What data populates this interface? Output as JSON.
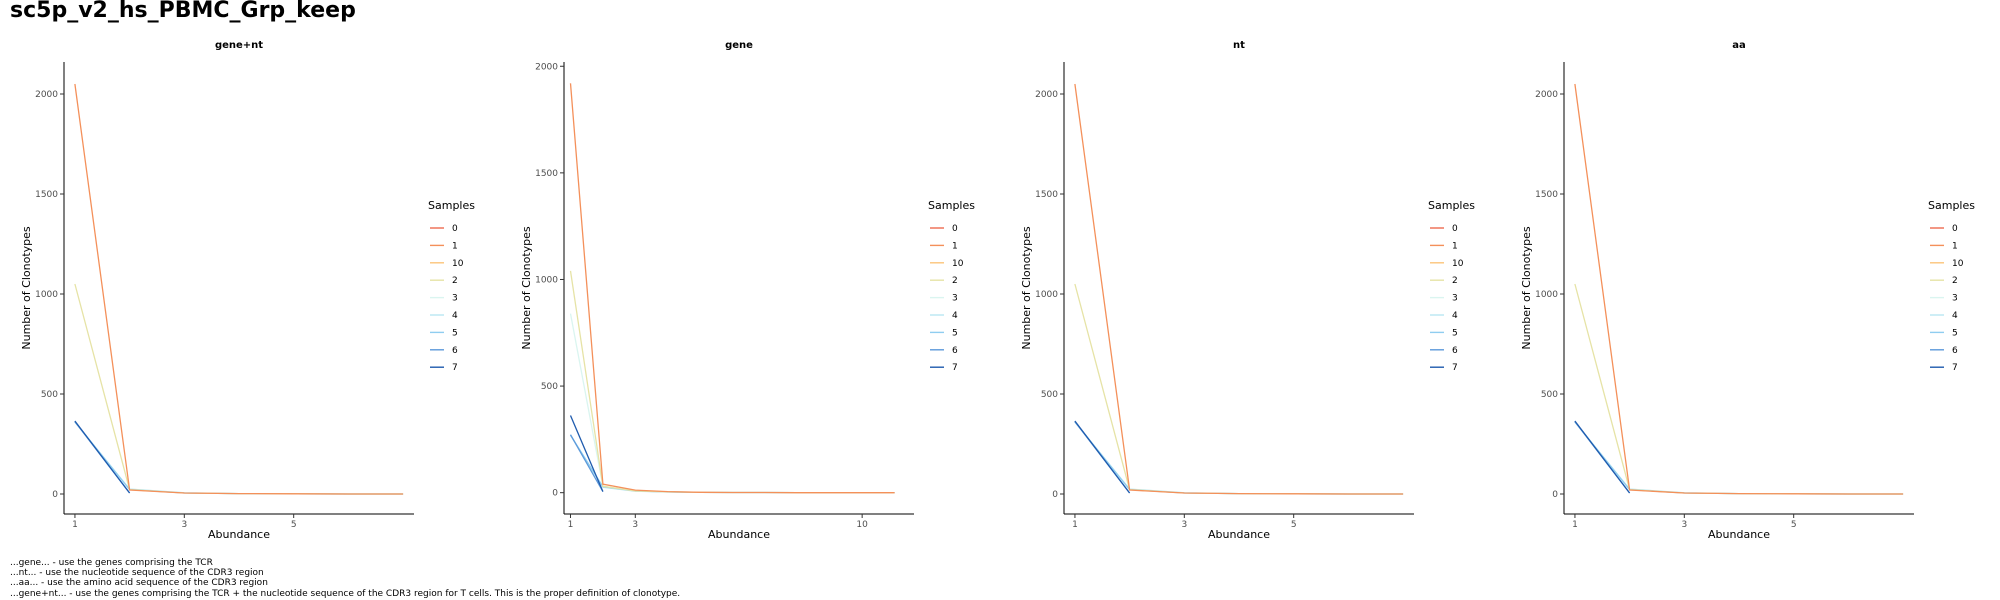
{
  "title": "sc5p_v2_hs_PBMC_Grp_keep",
  "captions": [
    "...gene... - use the genes comprising the TCR",
    "...nt... - use the nucleotide sequence of the CDR3 region",
    "...aa... - use the amino acid sequence of the CDR3 region",
    "...gene+nt... - use the genes comprising the TCR + the nucleotide sequence of the CDR3 region for T cells. This is the proper definition of clonotype."
  ],
  "series_colors": {
    "0": "#EE6A50",
    "1": "#F4905A",
    "10": "#FBC57A",
    "2": "#E6E3A6",
    "3": "#DAF5F0",
    "4": "#B8E6F2",
    "5": "#8FCDF0",
    "6": "#5D99DA",
    "7": "#1F5BAE"
  },
  "chart_data": [
    {
      "type": "line",
      "title": "gene+nt",
      "xlabel": "Abundance",
      "ylabel": "Number of Clonotypes",
      "xlim": [
        0.8,
        7.2
      ],
      "ylim": [
        -100,
        2160
      ],
      "xticks": [
        1,
        3,
        5
      ],
      "yticks": [
        0,
        500,
        1000,
        1500,
        2000
      ],
      "legend_title": "Samples",
      "legend": [
        "0",
        "1",
        "10",
        "2",
        "3",
        "4",
        "5",
        "6",
        "7"
      ],
      "series": [
        {
          "name": "3",
          "x": [
            1,
            2,
            3,
            4,
            5,
            6,
            7
          ],
          "y": [
            360,
            25,
            6,
            2,
            1,
            0,
            0
          ]
        },
        {
          "name": "4",
          "x": [
            1,
            2,
            3,
            4,
            5,
            6,
            7
          ],
          "y": [
            360,
            24,
            6,
            2,
            1,
            0,
            0
          ]
        },
        {
          "name": "5",
          "x": [
            1,
            2,
            3,
            4,
            5,
            6,
            7
          ],
          "y": [
            360,
            22,
            5,
            2,
            1,
            0,
            0
          ]
        },
        {
          "name": "2",
          "x": [
            1,
            2,
            3,
            4,
            5,
            6,
            7
          ],
          "y": [
            1050,
            22,
            5,
            2,
            1,
            0,
            0
          ]
        },
        {
          "name": "1",
          "x": [
            1,
            2,
            3,
            4,
            5,
            6,
            7
          ],
          "y": [
            2050,
            20,
            5,
            2,
            1,
            0,
            0
          ]
        },
        {
          "name": "6",
          "x": [
            1,
            2
          ],
          "y": [
            362,
            5
          ]
        },
        {
          "name": "7",
          "x": [
            1,
            2
          ],
          "y": [
            365,
            5
          ]
        }
      ]
    },
    {
      "type": "line",
      "title": "gene",
      "xlabel": "Abundance",
      "ylabel": "Number of Clonotypes",
      "xlim": [
        0.8,
        11.6
      ],
      "ylim": [
        -100,
        2020
      ],
      "xticks": [
        1,
        3,
        10
      ],
      "yticks": [
        0,
        500,
        1000,
        1500,
        2000
      ],
      "legend_title": "Samples",
      "legend": [
        "0",
        "1",
        "10",
        "2",
        "3",
        "4",
        "5",
        "6",
        "7"
      ],
      "series": [
        {
          "name": "3",
          "x": [
            1,
            2,
            3,
            4,
            5,
            6,
            7,
            8,
            9,
            10,
            11
          ],
          "y": [
            840,
            30,
            8,
            4,
            2,
            1,
            1,
            0,
            0,
            0,
            0
          ]
        },
        {
          "name": "4",
          "x": [
            1,
            2,
            3,
            4,
            5,
            6,
            7,
            8,
            9,
            10,
            11
          ],
          "y": [
            270,
            25,
            7,
            3,
            2,
            1,
            1,
            0,
            0,
            0,
            0
          ]
        },
        {
          "name": "5",
          "x": [
            1,
            2,
            3,
            4,
            5,
            6,
            7,
            8,
            9,
            10,
            11
          ],
          "y": [
            270,
            28,
            8,
            3,
            2,
            1,
            1,
            0,
            0,
            0,
            0
          ]
        },
        {
          "name": "2",
          "x": [
            1,
            2,
            3,
            4,
            5,
            6,
            7,
            8,
            9,
            10,
            11
          ],
          "y": [
            1040,
            30,
            8,
            4,
            2,
            1,
            1,
            0,
            0,
            0,
            0
          ]
        },
        {
          "name": "1",
          "x": [
            1,
            2,
            3,
            4,
            5,
            6,
            7,
            8,
            9,
            10,
            11
          ],
          "y": [
            1920,
            40,
            12,
            5,
            2,
            1,
            1,
            0,
            0,
            0,
            0
          ]
        },
        {
          "name": "6",
          "x": [
            1,
            2
          ],
          "y": [
            272,
            5
          ]
        },
        {
          "name": "7",
          "x": [
            1,
            2
          ],
          "y": [
            362,
            5
          ]
        }
      ]
    },
    {
      "type": "line",
      "title": "nt",
      "xlabel": "Abundance",
      "ylabel": "Number of Clonotypes",
      "xlim": [
        0.8,
        7.2
      ],
      "ylim": [
        -100,
        2160
      ],
      "xticks": [
        1,
        3,
        5
      ],
      "yticks": [
        0,
        500,
        1000,
        1500,
        2000
      ],
      "legend_title": "Samples",
      "legend": [
        "0",
        "1",
        "10",
        "2",
        "3",
        "4",
        "5",
        "6",
        "7"
      ],
      "series": [
        {
          "name": "3",
          "x": [
            1,
            2,
            3,
            4,
            5,
            6,
            7
          ],
          "y": [
            360,
            25,
            6,
            2,
            1,
            0,
            0
          ]
        },
        {
          "name": "4",
          "x": [
            1,
            2,
            3,
            4,
            5,
            6,
            7
          ],
          "y": [
            360,
            24,
            6,
            2,
            1,
            0,
            0
          ]
        },
        {
          "name": "5",
          "x": [
            1,
            2,
            3,
            4,
            5,
            6,
            7
          ],
          "y": [
            360,
            22,
            5,
            2,
            1,
            0,
            0
          ]
        },
        {
          "name": "2",
          "x": [
            1,
            2,
            3,
            4,
            5,
            6,
            7
          ],
          "y": [
            1050,
            22,
            5,
            2,
            1,
            0,
            0
          ]
        },
        {
          "name": "1",
          "x": [
            1,
            2,
            3,
            4,
            5,
            6,
            7
          ],
          "y": [
            2050,
            20,
            5,
            2,
            1,
            0,
            0
          ]
        },
        {
          "name": "6",
          "x": [
            1,
            2
          ],
          "y": [
            362,
            5
          ]
        },
        {
          "name": "7",
          "x": [
            1,
            2
          ],
          "y": [
            365,
            5
          ]
        }
      ]
    },
    {
      "type": "line",
      "title": "aa",
      "xlabel": "Abundance",
      "ylabel": "Number of Clonotypes",
      "xlim": [
        0.8,
        7.2
      ],
      "ylim": [
        -100,
        2160
      ],
      "xticks": [
        1,
        3,
        5
      ],
      "yticks": [
        0,
        500,
        1000,
        1500,
        2000
      ],
      "legend_title": "Samples",
      "legend": [
        "0",
        "1",
        "10",
        "2",
        "3",
        "4",
        "5",
        "6",
        "7"
      ],
      "series": [
        {
          "name": "3",
          "x": [
            1,
            2,
            3,
            4,
            5,
            6,
            7
          ],
          "y": [
            360,
            25,
            6,
            2,
            1,
            0,
            0
          ]
        },
        {
          "name": "4",
          "x": [
            1,
            2,
            3,
            4,
            5,
            6,
            7
          ],
          "y": [
            360,
            24,
            6,
            2,
            1,
            0,
            0
          ]
        },
        {
          "name": "5",
          "x": [
            1,
            2,
            3,
            4,
            5,
            6,
            7
          ],
          "y": [
            360,
            22,
            5,
            2,
            1,
            0,
            0
          ]
        },
        {
          "name": "2",
          "x": [
            1,
            2,
            3,
            4,
            5,
            6,
            7
          ],
          "y": [
            1050,
            22,
            5,
            2,
            1,
            0,
            0
          ]
        },
        {
          "name": "1",
          "x": [
            1,
            2,
            3,
            4,
            5,
            6,
            7
          ],
          "y": [
            2050,
            20,
            5,
            2,
            1,
            0,
            0
          ]
        },
        {
          "name": "6",
          "x": [
            1,
            2
          ],
          "y": [
            362,
            5
          ]
        },
        {
          "name": "7",
          "x": [
            1,
            2
          ],
          "y": [
            365,
            5
          ]
        }
      ]
    }
  ]
}
